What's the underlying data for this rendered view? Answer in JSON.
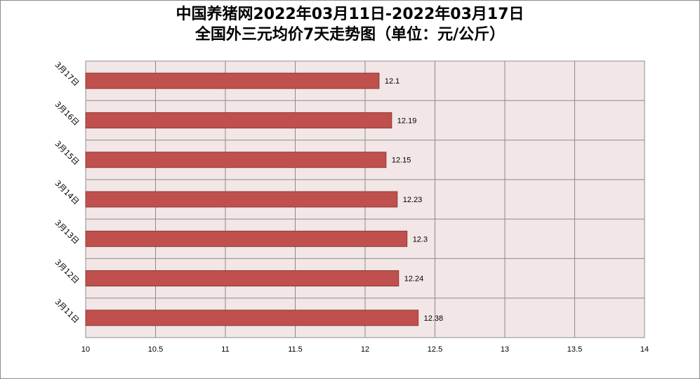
{
  "chart_data": {
    "type": "bar",
    "orientation": "horizontal",
    "title_line1": "中国养猪网2022年03月11日-2022年03月17日",
    "title_line2": "全国外三元均价7天走势图（单位：元/公斤）",
    "categories": [
      "3月17日",
      "3月16日",
      "3月15日",
      "3月14日",
      "3月13日",
      "3月12日",
      "3月11日"
    ],
    "values": [
      12.1,
      12.19,
      12.15,
      12.23,
      12.3,
      12.24,
      12.38
    ],
    "data_labels": [
      "12.1",
      "12.19",
      "12.15",
      "12.23",
      "12.3",
      "12.24",
      "12.38"
    ],
    "xlim": [
      10,
      14
    ],
    "xticks": [
      "10",
      "10.5",
      "11",
      "11.5",
      "12",
      "12.5",
      "13",
      "13.5",
      "14"
    ],
    "grid": true,
    "legend": "none",
    "colors": {
      "bar": "#c0504d",
      "bar_border": "#8c3836",
      "plot_bg": "#f2e6e6",
      "grid": "#8c8c8c"
    }
  }
}
